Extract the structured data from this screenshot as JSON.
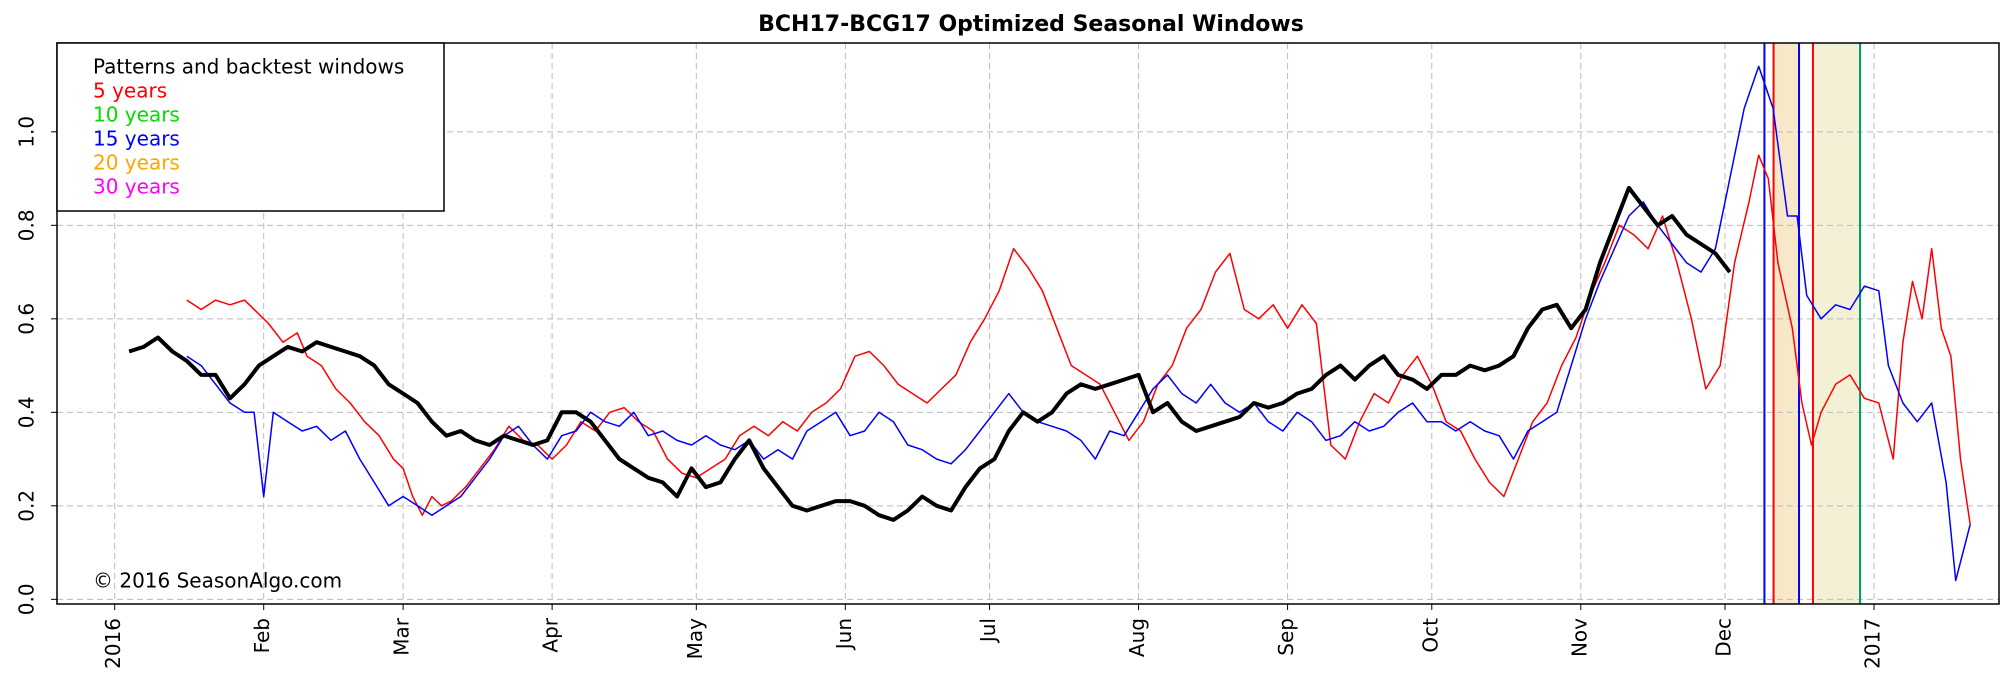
{
  "chart_data": {
    "type": "line",
    "title": "BCH17-BCG17 Optimized Seasonal Windows",
    "xlim": [
      -12,
      392
    ],
    "ylim": [
      -0.01,
      1.19
    ],
    "xticks": [
      {
        "value": 0,
        "label": "2016"
      },
      {
        "value": 31,
        "label": "Feb"
      },
      {
        "value": 60,
        "label": "Mar"
      },
      {
        "value": 91,
        "label": "Apr"
      },
      {
        "value": 121,
        "label": "May"
      },
      {
        "value": 152,
        "label": "Jun"
      },
      {
        "value": 182,
        "label": "Jul"
      },
      {
        "value": 213,
        "label": "Aug"
      },
      {
        "value": 244,
        "label": "Sep"
      },
      {
        "value": 274,
        "label": "Oct"
      },
      {
        "value": 305,
        "label": "Nov"
      },
      {
        "value": 335,
        "label": "Dec"
      },
      {
        "value": 366,
        "label": "2017"
      }
    ],
    "yticks": [
      {
        "value": 0,
        "label": "0.0"
      },
      0.2,
      0.4,
      0.6,
      0.8,
      {
        "value": 1,
        "label": "1.0"
      }
    ],
    "grid": true,
    "legend": {
      "title": "Patterns and backtest windows",
      "entries": [
        {
          "name": "5 years",
          "color": "#ff0000"
        },
        {
          "name": "10 years",
          "color": "#00dd00"
        },
        {
          "name": "15 years",
          "color": "#0000ff"
        },
        {
          "name": "20 years",
          "color": "#ffa500"
        },
        {
          "name": "30 years",
          "color": "#ff00ff"
        }
      ]
    },
    "annotation": "© 2016 SeasonAlgo.com",
    "windows": [
      {
        "start": 345.1,
        "end": 350.4,
        "color": "#f6e8c8"
      },
      {
        "start": 353.3,
        "end": 363.1,
        "color": "#f3f0d6"
      }
    ],
    "vlines": [
      {
        "x": 343.2,
        "color": "#0000ff"
      },
      {
        "x": 345.1,
        "color": "#ff0000"
      },
      {
        "x": 350.4,
        "color": "#0000ff"
      },
      {
        "x": 353.3,
        "color": "#ff0000"
      },
      {
        "x": 363.1,
        "color": "#009966"
      }
    ],
    "series": [
      {
        "color": "#ff0000",
        "width": 1.5,
        "x": [
          15,
          18,
          21,
          24,
          27,
          30,
          32,
          35,
          38,
          40,
          43,
          46,
          49,
          52,
          55,
          58,
          60,
          62,
          64,
          66,
          68,
          70,
          73,
          76,
          79,
          82,
          85,
          88,
          91,
          94,
          97,
          100,
          103,
          106,
          109,
          112,
          115,
          118,
          121,
          124,
          127,
          130,
          133,
          136,
          139,
          142,
          145,
          148,
          151,
          154,
          157,
          160,
          163,
          166,
          169,
          172,
          175,
          178,
          181,
          184,
          187,
          190,
          193,
          196,
          199,
          202,
          205,
          208,
          211,
          214,
          217,
          220,
          223,
          226,
          229,
          232,
          235,
          238,
          241,
          244,
          247,
          250,
          253,
          256,
          259,
          262,
          265,
          268,
          271,
          274,
          277,
          280,
          283,
          286,
          289,
          292,
          295,
          298,
          301,
          304,
          307,
          310,
          313,
          316,
          319,
          322,
          325,
          328,
          331,
          334,
          337,
          340,
          342,
          344,
          346,
          349,
          351,
          353,
          355,
          358,
          361,
          364,
          367,
          370,
          372,
          374,
          376,
          378,
          380,
          382,
          384,
          386
        ],
        "values": [
          0.64,
          0.62,
          0.64,
          0.63,
          0.64,
          0.61,
          0.59,
          0.55,
          0.57,
          0.52,
          0.5,
          0.45,
          0.42,
          0.38,
          0.35,
          0.3,
          0.28,
          0.22,
          0.18,
          0.22,
          0.2,
          0.21,
          0.24,
          0.28,
          0.32,
          0.37,
          0.34,
          0.33,
          0.3,
          0.33,
          0.38,
          0.36,
          0.4,
          0.41,
          0.38,
          0.36,
          0.3,
          0.27,
          0.26,
          0.28,
          0.3,
          0.35,
          0.37,
          0.35,
          0.38,
          0.36,
          0.4,
          0.42,
          0.45,
          0.52,
          0.53,
          0.5,
          0.46,
          0.44,
          0.42,
          0.45,
          0.48,
          0.55,
          0.6,
          0.66,
          0.75,
          0.71,
          0.66,
          0.58,
          0.5,
          0.48,
          0.46,
          0.4,
          0.34,
          0.38,
          0.46,
          0.5,
          0.58,
          0.62,
          0.7,
          0.74,
          0.62,
          0.6,
          0.63,
          0.58,
          0.63,
          0.59,
          0.33,
          0.3,
          0.38,
          0.44,
          0.42,
          0.48,
          0.52,
          0.46,
          0.38,
          0.36,
          0.3,
          0.25,
          0.22,
          0.3,
          0.38,
          0.42,
          0.5,
          0.56,
          0.65,
          0.72,
          0.8,
          0.78,
          0.75,
          0.82,
          0.72,
          0.6,
          0.45,
          0.5,
          0.72,
          0.85,
          0.95,
          0.9,
          0.72,
          0.58,
          0.42,
          0.33,
          0.4,
          0.46,
          0.48,
          0.43,
          0.42,
          0.3,
          0.55,
          0.68,
          0.6,
          0.75,
          0.58,
          0.52,
          0.3,
          0.16
        ]
      },
      {
        "color": "#0000ff",
        "width": 1.5,
        "x": [
          15,
          18,
          21,
          24,
          27,
          29,
          31,
          33,
          36,
          39,
          42,
          45,
          48,
          51,
          54,
          57,
          60,
          63,
          66,
          69,
          72,
          75,
          78,
          81,
          84,
          87,
          90,
          93,
          96,
          99,
          102,
          105,
          108,
          111,
          114,
          117,
          120,
          123,
          126,
          129,
          132,
          135,
          138,
          141,
          144,
          147,
          150,
          153,
          156,
          159,
          162,
          165,
          168,
          171,
          174,
          177,
          180,
          183,
          186,
          189,
          192,
          195,
          198,
          201,
          204,
          207,
          210,
          213,
          216,
          219,
          222,
          225,
          228,
          231,
          234,
          237,
          240,
          243,
          246,
          249,
          252,
          255,
          258,
          261,
          264,
          267,
          270,
          273,
          276,
          279,
          282,
          285,
          288,
          291,
          294,
          297,
          300,
          303,
          306,
          309,
          312,
          315,
          318,
          321,
          324,
          327,
          330,
          333,
          336,
          339,
          342,
          345,
          348,
          350,
          352,
          355,
          358,
          361,
          364,
          367,
          369,
          372,
          375,
          378,
          381,
          383,
          386
        ],
        "values": [
          0.52,
          0.5,
          0.46,
          0.42,
          0.4,
          0.4,
          0.22,
          0.4,
          0.38,
          0.36,
          0.37,
          0.34,
          0.36,
          0.3,
          0.25,
          0.2,
          0.22,
          0.2,
          0.18,
          0.2,
          0.22,
          0.26,
          0.3,
          0.35,
          0.37,
          0.33,
          0.3,
          0.35,
          0.36,
          0.4,
          0.38,
          0.37,
          0.4,
          0.35,
          0.36,
          0.34,
          0.33,
          0.35,
          0.33,
          0.32,
          0.34,
          0.3,
          0.32,
          0.3,
          0.36,
          0.38,
          0.4,
          0.35,
          0.36,
          0.4,
          0.38,
          0.33,
          0.32,
          0.3,
          0.29,
          0.32,
          0.36,
          0.4,
          0.44,
          0.4,
          0.38,
          0.37,
          0.36,
          0.34,
          0.3,
          0.36,
          0.35,
          0.4,
          0.45,
          0.48,
          0.44,
          0.42,
          0.46,
          0.42,
          0.4,
          0.42,
          0.38,
          0.36,
          0.4,
          0.38,
          0.34,
          0.35,
          0.38,
          0.36,
          0.37,
          0.4,
          0.42,
          0.38,
          0.38,
          0.36,
          0.38,
          0.36,
          0.35,
          0.3,
          0.36,
          0.38,
          0.4,
          0.5,
          0.6,
          0.68,
          0.75,
          0.82,
          0.85,
          0.8,
          0.76,
          0.72,
          0.7,
          0.75,
          0.9,
          1.05,
          1.14,
          1.05,
          0.82,
          0.82,
          0.65,
          0.6,
          0.63,
          0.62,
          0.67,
          0.66,
          0.5,
          0.42,
          0.38,
          0.42,
          0.25,
          0.04,
          0.16
        ]
      },
      {
        "color": "#000000",
        "width": 4,
        "x": [
          3,
          6,
          9,
          12,
          15,
          18,
          21,
          24,
          27,
          30,
          33,
          36,
          39,
          42,
          45,
          48,
          51,
          54,
          57,
          60,
          63,
          66,
          69,
          72,
          75,
          78,
          81,
          84,
          87,
          90,
          93,
          96,
          99,
          102,
          105,
          108,
          111,
          114,
          117,
          120,
          123,
          126,
          129,
          132,
          135,
          138,
          141,
          144,
          147,
          150,
          153,
          156,
          159,
          162,
          165,
          168,
          171,
          174,
          177,
          180,
          183,
          186,
          189,
          192,
          195,
          198,
          201,
          204,
          207,
          210,
          213,
          216,
          219,
          222,
          225,
          228,
          231,
          234,
          237,
          240,
          243,
          246,
          249,
          252,
          255,
          258,
          261,
          264,
          267,
          270,
          273,
          276,
          279,
          282,
          285,
          288,
          291,
          294,
          297,
          300,
          303,
          306,
          309,
          312,
          315,
          318,
          321,
          324,
          327,
          330,
          333,
          336
        ],
        "values": [
          0.53,
          0.54,
          0.56,
          0.53,
          0.51,
          0.48,
          0.48,
          0.43,
          0.46,
          0.5,
          0.52,
          0.54,
          0.53,
          0.55,
          0.54,
          0.53,
          0.52,
          0.5,
          0.46,
          0.44,
          0.42,
          0.38,
          0.35,
          0.36,
          0.34,
          0.33,
          0.35,
          0.34,
          0.33,
          0.34,
          0.4,
          0.4,
          0.38,
          0.34,
          0.3,
          0.28,
          0.26,
          0.25,
          0.22,
          0.28,
          0.24,
          0.25,
          0.3,
          0.34,
          0.28,
          0.24,
          0.2,
          0.19,
          0.2,
          0.21,
          0.21,
          0.2,
          0.18,
          0.17,
          0.19,
          0.22,
          0.2,
          0.19,
          0.24,
          0.28,
          0.3,
          0.36,
          0.4,
          0.38,
          0.4,
          0.44,
          0.46,
          0.45,
          0.46,
          0.47,
          0.48,
          0.4,
          0.42,
          0.38,
          0.36,
          0.37,
          0.38,
          0.39,
          0.42,
          0.41,
          0.42,
          0.44,
          0.45,
          0.48,
          0.5,
          0.47,
          0.5,
          0.52,
          0.48,
          0.47,
          0.45,
          0.48,
          0.48,
          0.5,
          0.49,
          0.5,
          0.52,
          0.58,
          0.62,
          0.63,
          0.58,
          0.62,
          0.72,
          0.8,
          0.88,
          0.84,
          0.8,
          0.82,
          0.78,
          0.76,
          0.74,
          0.7
        ]
      }
    ]
  }
}
